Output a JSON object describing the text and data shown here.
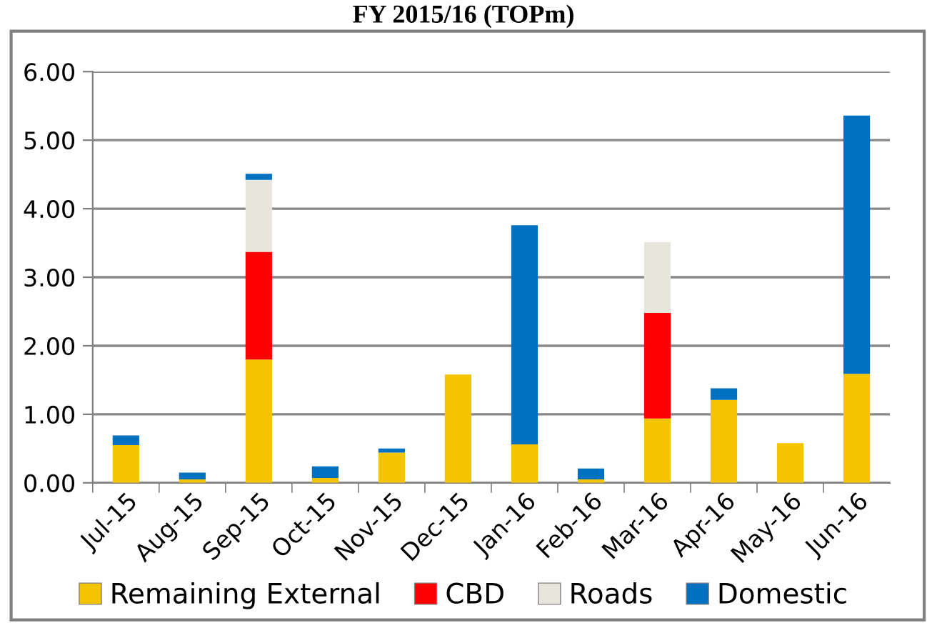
{
  "chart_data": {
    "type": "bar",
    "title": "FY 2015/16 (TOPm)",
    "stacked": true,
    "categories": [
      "Jul-15",
      "Aug-15",
      "Sep-15",
      "Oct-15",
      "Nov-15",
      "Dec-15",
      "Jan-16",
      "Feb-16",
      "Mar-16",
      "Apr-16",
      "May-16",
      "Jun-16"
    ],
    "series": [
      {
        "name": "Remaining External",
        "color": "#f5c400",
        "values": [
          0.55,
          0.05,
          1.8,
          0.07,
          0.44,
          1.58,
          0.56,
          0.05,
          0.94,
          1.21,
          0.58,
          1.59
        ]
      },
      {
        "name": "CBD",
        "color": "#ff0000",
        "values": [
          0,
          0,
          1.57,
          0,
          0,
          0,
          0,
          0,
          1.54,
          0,
          0,
          0
        ]
      },
      {
        "name": "Roads",
        "color": "#e8e6dc",
        "values": [
          0,
          0,
          1.05,
          0,
          0,
          0,
          0,
          0,
          1.03,
          0,
          0,
          0
        ]
      },
      {
        "name": "Domestic",
        "color": "#0070c0",
        "values": [
          0.14,
          0.1,
          0.09,
          0.17,
          0.06,
          0,
          3.2,
          0.16,
          0,
          0.17,
          0,
          3.77
        ]
      }
    ],
    "ylim": [
      0,
      6
    ],
    "yticks": [
      {
        "value": 0,
        "label": "0.00"
      },
      {
        "value": 1,
        "label": "1.00"
      },
      {
        "value": 2,
        "label": "2.00"
      },
      {
        "value": 3,
        "label": "3.00"
      },
      {
        "value": 4,
        "label": "4.00"
      },
      {
        "value": 5,
        "label": "5.00"
      },
      {
        "value": 6,
        "label": "6.00"
      }
    ],
    "grid": "y",
    "legend": "bottom"
  }
}
